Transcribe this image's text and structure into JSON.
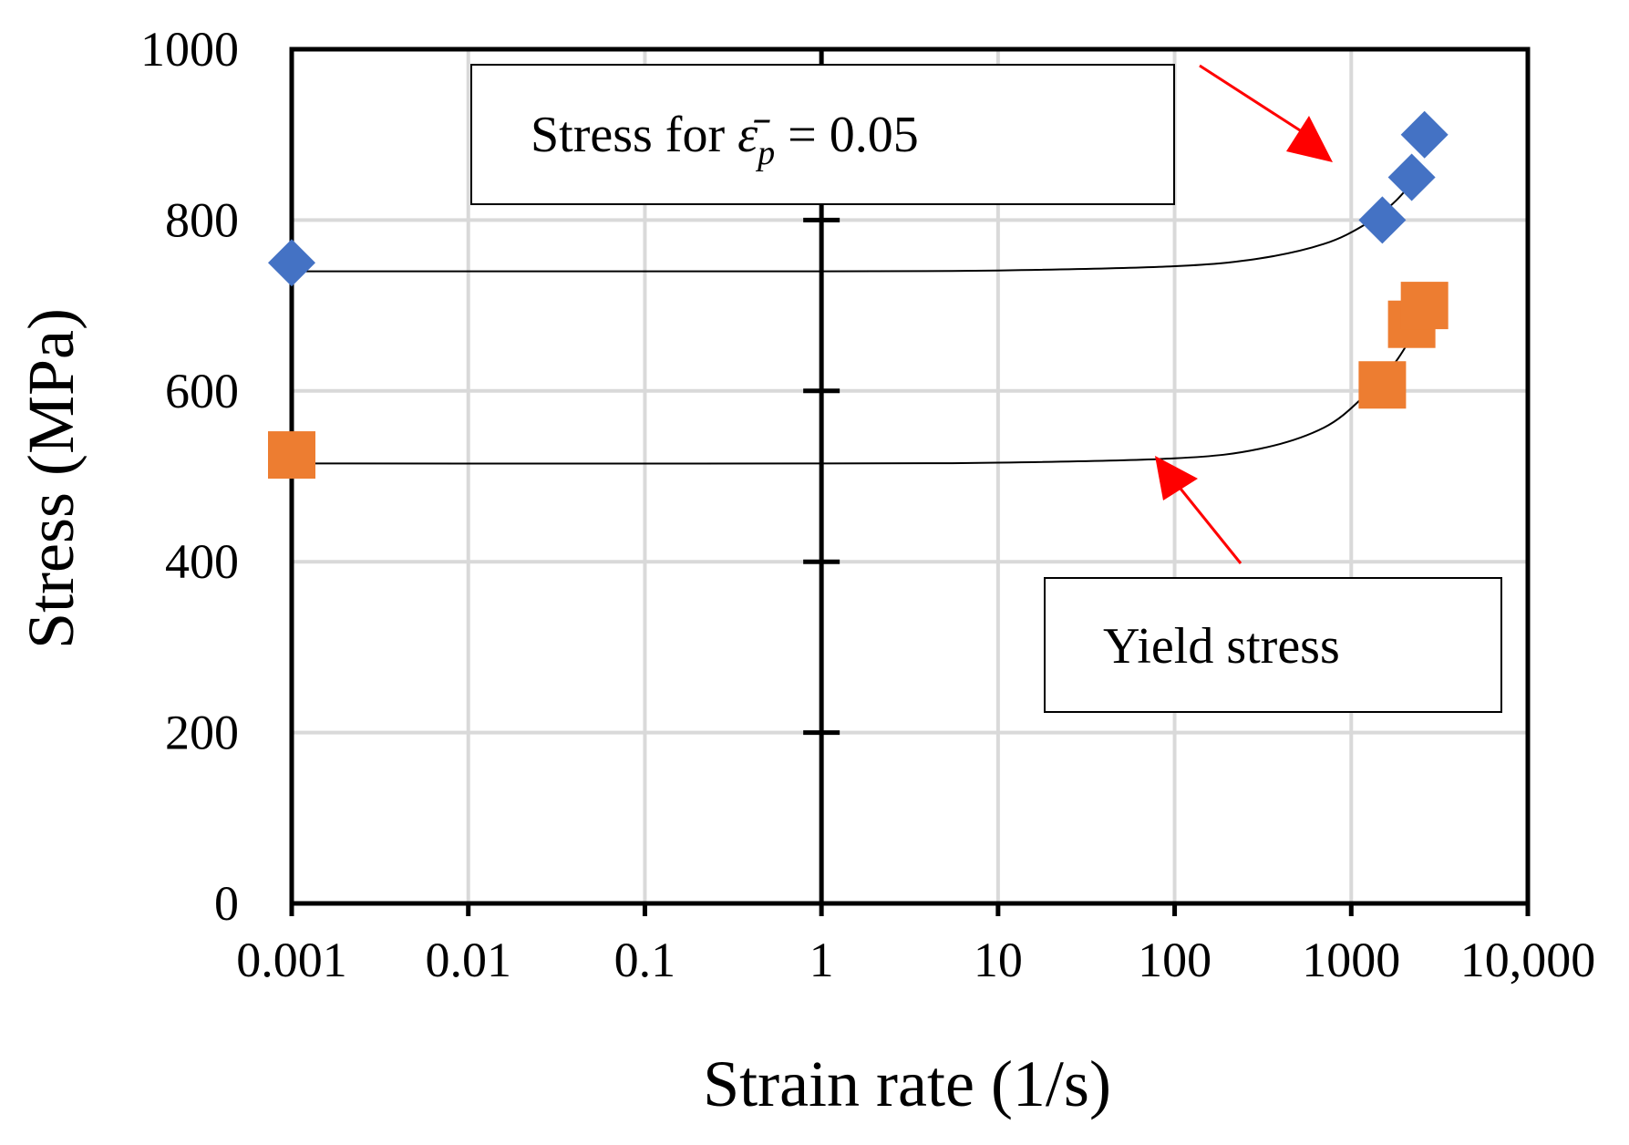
{
  "chart_data": {
    "type": "scatter",
    "xscale": "log",
    "xlim": [
      0.001,
      10000
    ],
    "ylim": [
      0,
      1000
    ],
    "grid": true,
    "xlabel": "Strain rate (1/s)",
    "ylabel": "Stress (MPa)",
    "x_ticks": [
      {
        "value": 0.001,
        "label": "0.001"
      },
      {
        "value": 0.01,
        "label": "0.01"
      },
      {
        "value": 0.1,
        "label": "0.1"
      },
      {
        "value": 1,
        "label": "1"
      },
      {
        "value": 10,
        "label": "10"
      },
      {
        "value": 100,
        "label": "100"
      },
      {
        "value": 1000,
        "label": "1000"
      },
      {
        "value": 10000,
        "label": "10,000"
      }
    ],
    "y_ticks": [
      {
        "value": 0,
        "label": "0"
      },
      {
        "value": 200,
        "label": "200"
      },
      {
        "value": 400,
        "label": "400"
      },
      {
        "value": 600,
        "label": "600"
      },
      {
        "value": 800,
        "label": "800"
      },
      {
        "value": 1000,
        "label": "1000"
      }
    ],
    "series": [
      {
        "name": "Stress for plastic strain 0.05",
        "marker": "diamond",
        "color": "#4472C4",
        "points": [
          {
            "x": 0.001,
            "y": 750
          },
          {
            "x": 1500,
            "y": 800
          },
          {
            "x": 2200,
            "y": 850
          },
          {
            "x": 2600,
            "y": 900
          }
        ],
        "fit": [
          {
            "x": 0.001,
            "y": 740
          },
          {
            "x": 1,
            "y": 740
          },
          {
            "x": 10,
            "y": 741
          },
          {
            "x": 100,
            "y": 746
          },
          {
            "x": 300,
            "y": 755
          },
          {
            "x": 700,
            "y": 772
          },
          {
            "x": 1200,
            "y": 795
          },
          {
            "x": 1800,
            "y": 823
          },
          {
            "x": 2600,
            "y": 862
          }
        ]
      },
      {
        "name": "Yield stress",
        "marker": "square",
        "color": "#ED7D31",
        "points": [
          {
            "x": 0.001,
            "y": 525
          },
          {
            "x": 1500,
            "y": 607
          },
          {
            "x": 2200,
            "y": 678
          },
          {
            "x": 2600,
            "y": 700
          }
        ],
        "fit": [
          {
            "x": 0.001,
            "y": 515
          },
          {
            "x": 1,
            "y": 515
          },
          {
            "x": 10,
            "y": 516
          },
          {
            "x": 100,
            "y": 521
          },
          {
            "x": 300,
            "y": 532
          },
          {
            "x": 700,
            "y": 557
          },
          {
            "x": 1200,
            "y": 595
          },
          {
            "x": 1800,
            "y": 635
          },
          {
            "x": 2600,
            "y": 690
          }
        ]
      }
    ],
    "annotations": [
      {
        "id": "stress-annotation",
        "text_prefix": "Stress for ",
        "symbol": "ε̄",
        "subscript": "p",
        "text_suffix": " = 0.05"
      },
      {
        "id": "yield-annotation",
        "text": "Yield stress"
      }
    ],
    "center_axis": {
      "x": 1,
      "tick_values": [
        200,
        400,
        600,
        800
      ]
    }
  }
}
